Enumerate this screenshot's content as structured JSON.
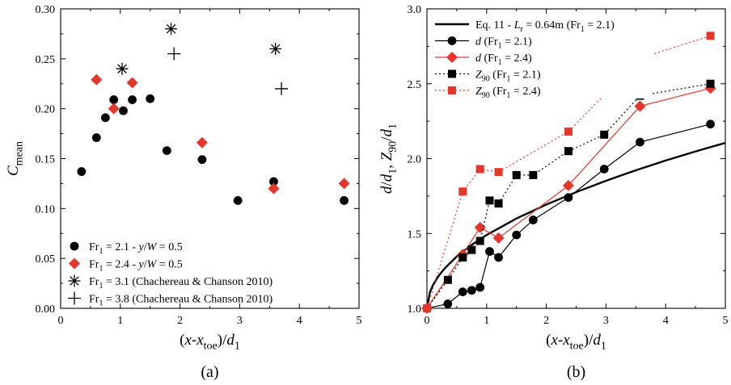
{
  "chart_data": [
    {
      "type": "scatter",
      "caption": "(a)",
      "xlabel_parts": [
        "(",
        "x",
        "-",
        "x",
        "toe",
        ")/",
        "d",
        "1"
      ],
      "ylabel_parts": [
        "C",
        "mean"
      ],
      "xlim": [
        0,
        5
      ],
      "ylim": [
        0,
        0.3
      ],
      "xticks": [
        "0",
        "1",
        "2",
        "3",
        "4",
        "5"
      ],
      "yticks": [
        "0.00",
        "0.05",
        "0.10",
        "0.15",
        "0.20",
        "0.25",
        "0.30"
      ],
      "legend_position": "bottom-left",
      "series": [
        {
          "legend": [
            "Fr",
            "1",
            " = 2.1 - ",
            "y",
            "/",
            "W",
            " = 0.5"
          ],
          "marker": "circle",
          "color": "#000000",
          "x": [
            0.35,
            0.6,
            0.75,
            0.89,
            1.05,
            1.2,
            1.5,
            1.78,
            2.37,
            2.97,
            3.57,
            4.75
          ],
          "y": [
            0.137,
            0.171,
            0.191,
            0.209,
            0.198,
            0.209,
            0.21,
            0.158,
            0.149,
            0.108,
            0.127,
            0.108
          ]
        },
        {
          "legend": [
            "Fr",
            "1",
            " = 2.4 - ",
            "y",
            "/",
            "W",
            " = 0.5"
          ],
          "marker": "diamond",
          "color": "#e3372b",
          "x": [
            0.6,
            0.89,
            1.2,
            2.37,
            3.57,
            4.75
          ],
          "y": [
            0.229,
            0.2,
            0.226,
            0.166,
            0.12,
            0.125
          ]
        },
        {
          "legend": [
            "Fr",
            "1",
            " = 3.1 (Chachereau & Chanson 2010)"
          ],
          "marker": "asterisk",
          "color": "#000000",
          "x": [
            1.03,
            1.85,
            3.6
          ],
          "y": [
            0.24,
            0.28,
            0.26
          ]
        },
        {
          "legend": [
            "Fr",
            "1",
            " = 3.8 (Chachereau & Chanson 2010)"
          ],
          "marker": "plus",
          "color": "#000000",
          "x": [
            1.9,
            3.7
          ],
          "y": [
            0.255,
            0.22
          ]
        }
      ]
    },
    {
      "type": "line",
      "caption": "(b)",
      "xlabel_parts": [
        "(",
        "x",
        "-",
        "x",
        "toe",
        ")/",
        "d",
        "1"
      ],
      "ylabel_parts": [
        "d",
        "/",
        "d",
        "1",
        ",   ",
        "Z",
        "90",
        "/",
        "d",
        "1"
      ],
      "xlim": [
        0,
        5
      ],
      "ylim": [
        1.0,
        3.0
      ],
      "xticks": [
        "0",
        "1",
        "2",
        "3",
        "4",
        "5"
      ],
      "yticks": [
        "1.0",
        "1.5",
        "2.0",
        "2.5",
        "3.0"
      ],
      "legend_position": "top-left",
      "series": [
        {
          "legend": [
            "Eq. 11 - ",
            "L",
            "r",
            " = 0.64m (Fr",
            "1",
            " = 2.1)"
          ],
          "style": "curve",
          "color": "#000000",
          "x": [
            0,
            0.05,
            0.1,
            0.2,
            0.3,
            0.5,
            0.75,
            1.0,
            1.5,
            2.0,
            2.5,
            3.0,
            3.5,
            4.0,
            4.5,
            5.0
          ],
          "y": [
            1.0,
            1.108,
            1.155,
            1.219,
            1.268,
            1.346,
            1.424,
            1.49,
            1.6,
            1.693,
            1.776,
            1.852,
            1.922,
            1.987,
            2.048,
            2.105
          ]
        },
        {
          "legend": [
            "d",
            "  (Fr",
            "1",
            " = 2.1)"
          ],
          "style": "solid-circle",
          "color": "#000000",
          "x": [
            0,
            0.35,
            0.6,
            0.75,
            0.89,
            1.05,
            1.2,
            1.5,
            1.78,
            2.37,
            2.97,
            3.57,
            4.75
          ],
          "y": [
            1.0,
            1.03,
            1.11,
            1.12,
            1.14,
            1.38,
            1.34,
            1.49,
            1.59,
            1.74,
            1.93,
            2.11,
            2.23
          ]
        },
        {
          "legend": [
            "d",
            "  (Fr",
            "1",
            " = 2.4)"
          ],
          "style": "solid-diamond",
          "color": "#e3372b",
          "x": [
            0,
            0.6,
            0.89,
            1.2,
            2.37,
            3.57,
            4.75
          ],
          "y": [
            1.0,
            1.36,
            1.54,
            1.47,
            1.82,
            2.35,
            2.47
          ]
        },
        {
          "legend": [
            "Z",
            "90",
            "  (Fr",
            "1",
            " = 2.1)"
          ],
          "style": "dotted-square",
          "color": "#000000",
          "x": [
            0,
            0.35,
            0.6,
            0.75,
            0.89,
            1.05,
            1.2,
            1.5,
            1.78,
            2.37,
            2.97,
            3.57,
            4.75
          ],
          "y": [
            1.0,
            1.19,
            1.34,
            1.39,
            1.45,
            1.72,
            1.7,
            1.89,
            1.89,
            2.05,
            2.16,
            2.42,
            2.5
          ]
        },
        {
          "legend": [
            "Z",
            "90",
            "  (Fr",
            "1",
            " = 2.4)"
          ],
          "style": "dotted-square",
          "color": "#e3372b",
          "x": [
            0,
            0.6,
            0.89,
            1.2,
            2.37,
            3.57,
            4.75
          ],
          "y": [
            1.0,
            1.78,
            1.93,
            1.91,
            2.18,
            2.67,
            2.82
          ]
        }
      ]
    }
  ]
}
